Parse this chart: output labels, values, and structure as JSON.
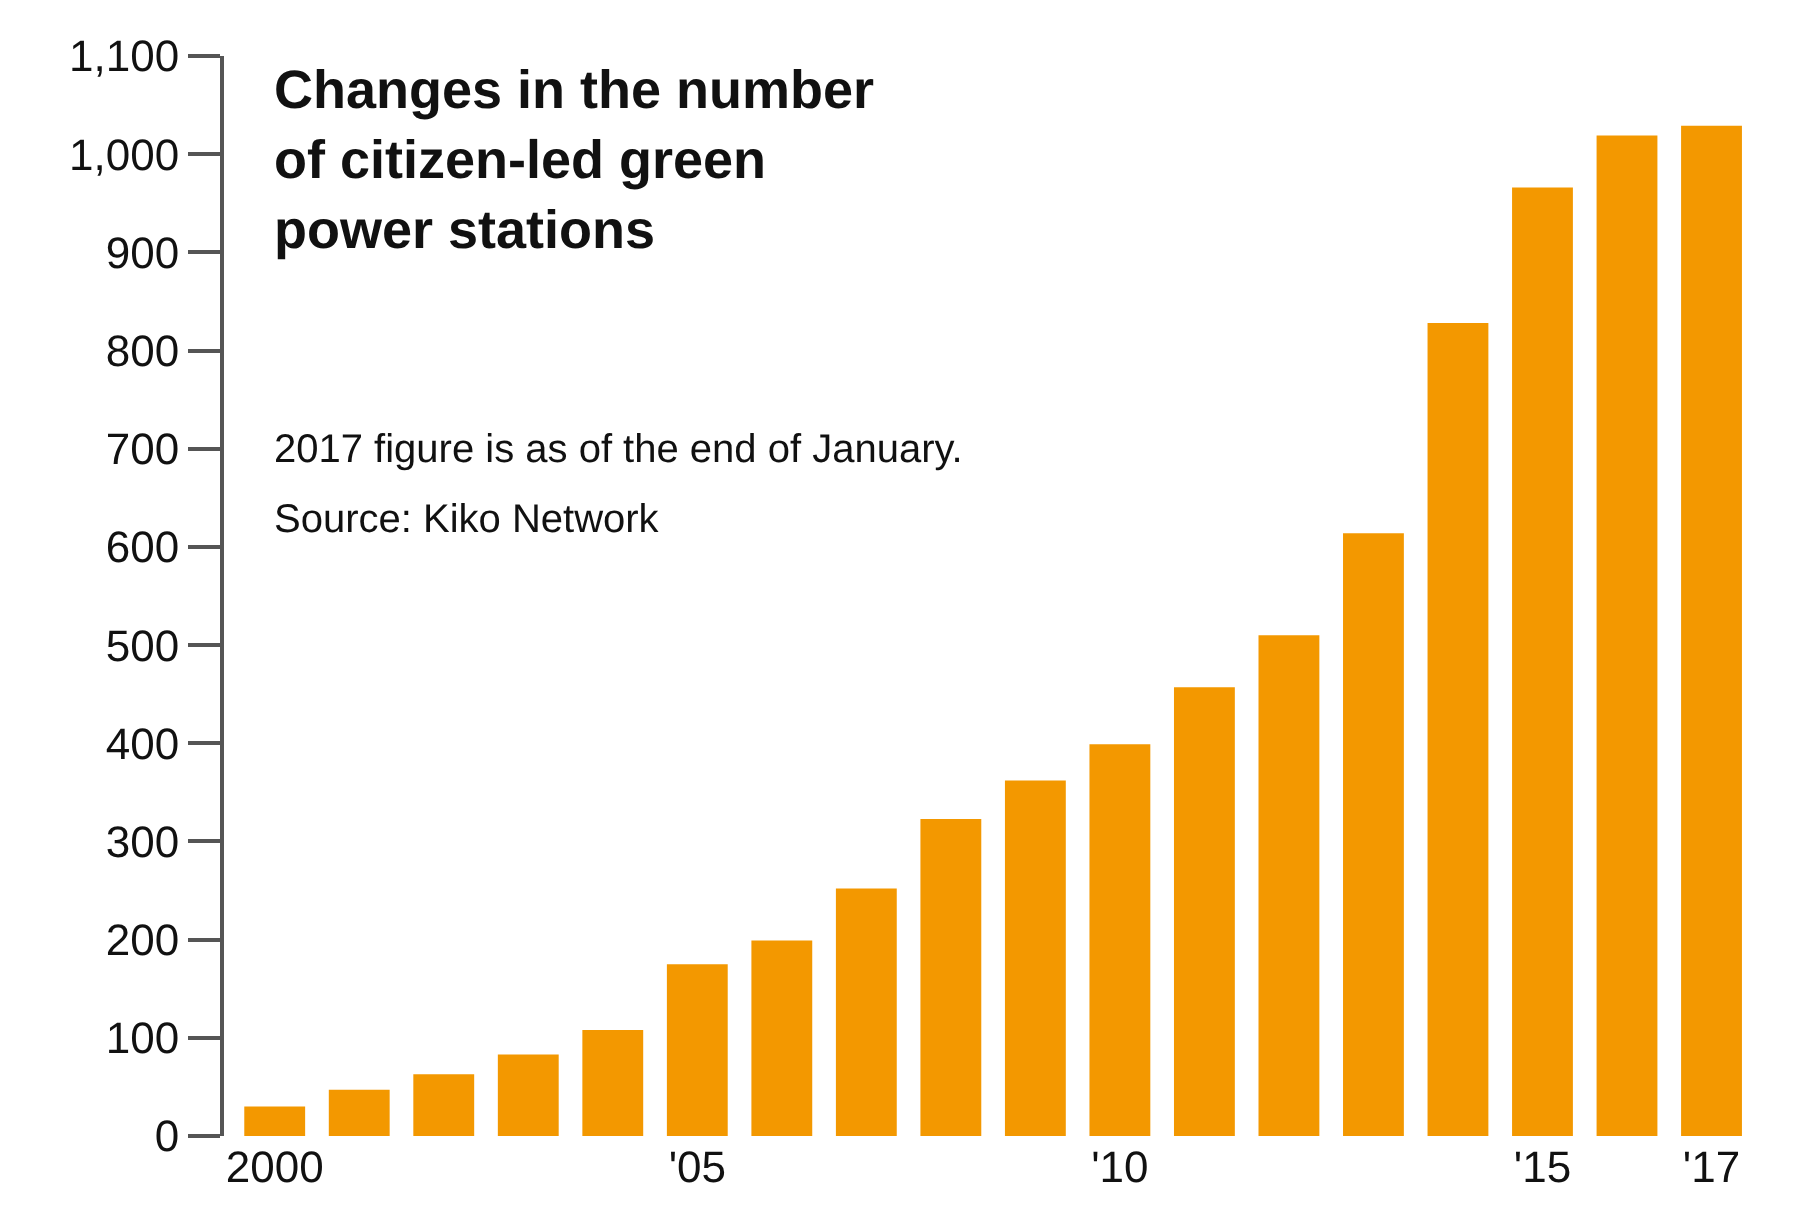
{
  "chart_data": {
    "type": "bar",
    "title": "Changes in the number\nof citizen-led green\npower stations",
    "annotations": [
      "2017 figure is as of the end of January.",
      "Source: Kiko Network"
    ],
    "categories": [
      "2000",
      null,
      null,
      null,
      null,
      "'05",
      null,
      null,
      null,
      null,
      "'10",
      null,
      null,
      null,
      null,
      "'15",
      null,
      "'17"
    ],
    "values": [
      30,
      47,
      63,
      83,
      108,
      175,
      199,
      252,
      323,
      362,
      399,
      457,
      510,
      614,
      828,
      966,
      1019,
      1029
    ],
    "color": "#f39800",
    "ylim": [
      0,
      1100
    ],
    "yticks": [
      0,
      100,
      200,
      300,
      400,
      500,
      600,
      700,
      800,
      900,
      {
        "value": 1000,
        "label": "1,000"
      },
      {
        "value": 1100,
        "label": "1,100"
      }
    ]
  }
}
